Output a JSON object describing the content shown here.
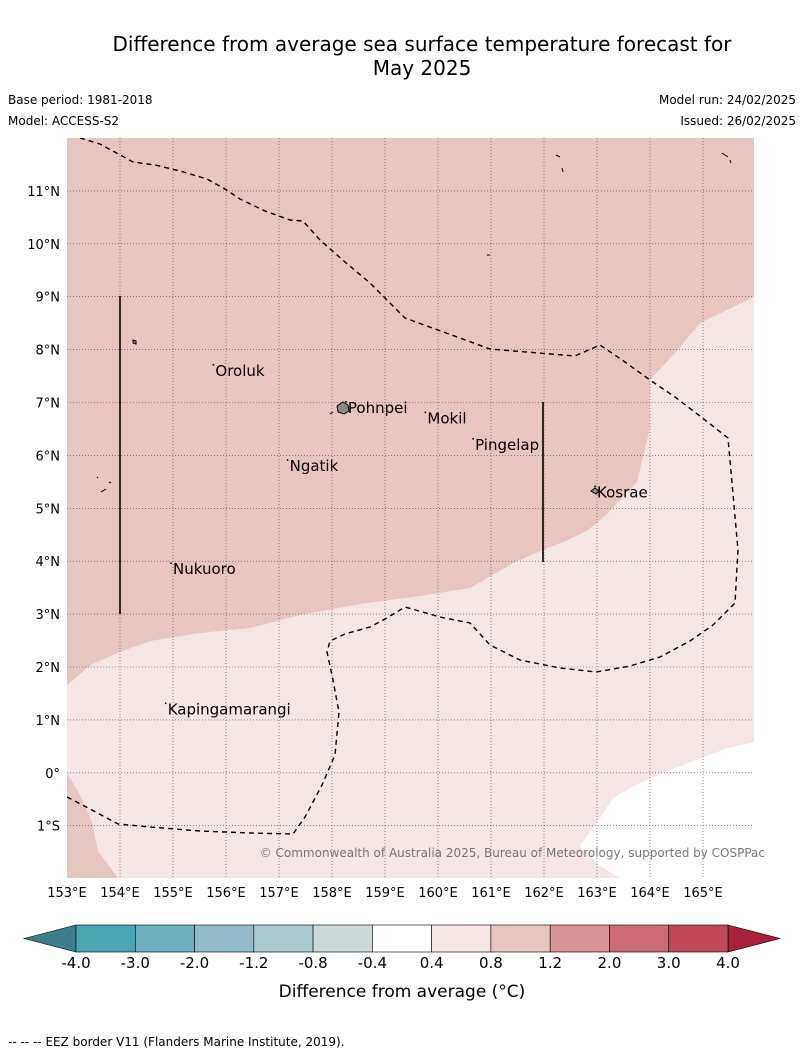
{
  "header": {
    "title_line1": "Difference from average sea surface temperature forecast for",
    "title_line2": "May 2025",
    "base_period": "Base period: 1981-2018",
    "model": "Model: ACCESS-S2",
    "model_run": "Model run: 24/02/2025",
    "issued": "Issued: 26/02/2025"
  },
  "map": {
    "lon_range": [
      153,
      166
    ],
    "lat_range": [
      -2,
      12
    ],
    "lon_ticks": [
      "153°E",
      "154°E",
      "155°E",
      "156°E",
      "157°E",
      "158°E",
      "159°E",
      "160°E",
      "161°E",
      "162°E",
      "163°E",
      "164°E",
      "165°E"
    ],
    "lat_ticks": [
      "11°N",
      "10°N",
      "9°N",
      "8°N",
      "7°N",
      "6°N",
      "5°N",
      "4°N",
      "3°N",
      "2°N",
      "1°N",
      "0°",
      "1°S"
    ],
    "places": [
      {
        "name": "Oroluk",
        "lon": 155.8,
        "lat": 7.6
      },
      {
        "name": "Pohnpei",
        "lon": 158.3,
        "lat": 6.9
      },
      {
        "name": "Mokil",
        "lon": 159.8,
        "lat": 6.7
      },
      {
        "name": "Pingelap",
        "lon": 160.7,
        "lat": 6.2
      },
      {
        "name": "Ngatik",
        "lon": 157.2,
        "lat": 5.8
      },
      {
        "name": "Kosrae",
        "lon": 163.0,
        "lat": 5.3
      },
      {
        "name": "Nukuoro",
        "lon": 155.0,
        "lat": 3.85
      },
      {
        "name": "Kapingamarangi",
        "lon": 154.9,
        "lat": 1.2
      }
    ],
    "copyright": "© Commonwealth of Australia 2025, Bureau of Meteorology, supported by COSPPac"
  },
  "colorbar": {
    "label": "Difference from average (°C)",
    "ticks": [
      "-4.0",
      "-3.0",
      "-2.0",
      "-1.2",
      "-0.8",
      "-0.4",
      "0.4",
      "0.8",
      "1.2",
      "2.0",
      "3.0",
      "4.0"
    ],
    "colors": [
      "#4ba5b5",
      "#6eb0bf",
      "#8fbac6",
      "#acc9cd",
      "#cdd8d8",
      "#ffffff",
      "#f4e6e4",
      "#e7c5c0",
      "#d6939a",
      "#cb6b77",
      "#c0485a"
    ],
    "under_color": "#3d7e8a",
    "over_color": "#a8203c"
  },
  "footer": {
    "legend_symbol": "-- -- --",
    "eez_note": "EEZ border V11 (Flanders Marine Institute, 2019)."
  }
}
